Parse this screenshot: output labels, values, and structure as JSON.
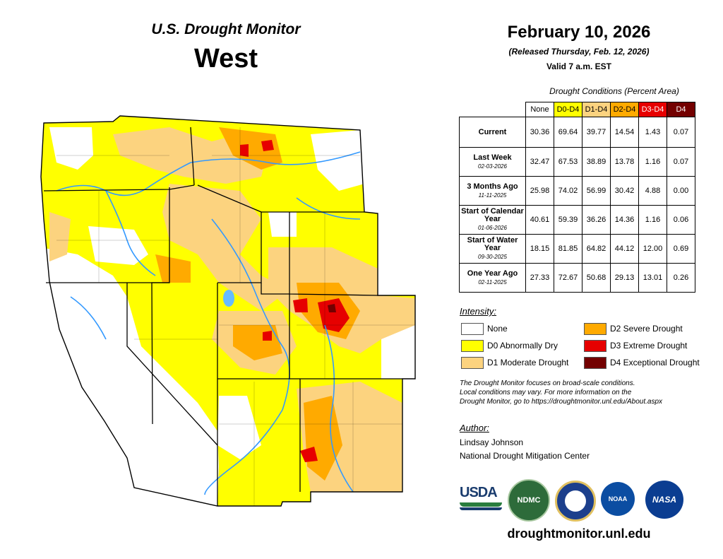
{
  "header": {
    "subtitle": "U.S. Drought Monitor",
    "region": "West",
    "date": "February 10, 2026",
    "released": "(Released Thursday, Feb. 12, 2026)",
    "valid": "Valid 7 a.m. EST"
  },
  "table": {
    "title": "Drought Conditions (Percent Area)",
    "columns": [
      "None",
      "D0-D4",
      "D1-D4",
      "D2-D4",
      "D3-D4",
      "D4"
    ],
    "column_colors": [
      "#ffffff",
      "#ffff00",
      "#fcd37f",
      "#ffaa00",
      "#e60000",
      "#730000"
    ],
    "rows": [
      {
        "label": "Current",
        "date": "",
        "values": [
          "30.36",
          "69.64",
          "39.77",
          "14.54",
          "1.43",
          "0.07"
        ]
      },
      {
        "label": "Last Week",
        "date": "02-03-2026",
        "values": [
          "32.47",
          "67.53",
          "38.89",
          "13.78",
          "1.16",
          "0.07"
        ]
      },
      {
        "label": "3 Months Ago",
        "date": "11-11-2025",
        "values": [
          "25.98",
          "74.02",
          "56.99",
          "30.42",
          "4.88",
          "0.00"
        ]
      },
      {
        "label": "Start of Calendar Year",
        "date": "01-06-2026",
        "values": [
          "40.61",
          "59.39",
          "36.26",
          "14.36",
          "1.16",
          "0.06"
        ]
      },
      {
        "label": "Start of Water Year",
        "date": "09-30-2025",
        "values": [
          "18.15",
          "81.85",
          "64.82",
          "44.12",
          "12.00",
          "0.69"
        ]
      },
      {
        "label": "One Year Ago",
        "date": "02-11-2025",
        "values": [
          "27.33",
          "72.67",
          "50.68",
          "29.13",
          "13.01",
          "0.26"
        ]
      }
    ]
  },
  "legend": {
    "heading": "Intensity:",
    "items": [
      {
        "label": "None",
        "color": "#ffffff"
      },
      {
        "label": "D0 Abnormally Dry",
        "color": "#ffff00"
      },
      {
        "label": "D1 Moderate Drought",
        "color": "#fcd37f"
      },
      {
        "label": "D2 Severe Drought",
        "color": "#ffaa00"
      },
      {
        "label": "D3 Extreme Drought",
        "color": "#e60000"
      },
      {
        "label": "D4 Exceptional Drought",
        "color": "#730000"
      }
    ]
  },
  "note": {
    "line1": "The Drought Monitor focuses on broad-scale conditions.",
    "line2": "Local conditions may vary. For more information on the",
    "line3": "Drought Monitor, go to https://droughtmonitor.unl.edu/About.aspx"
  },
  "author": {
    "heading": "Author:",
    "name": "Lindsay Johnson",
    "org": "National Drought Mitigation Center"
  },
  "logos": {
    "usda": "USDA",
    "ndmc": "NDMC",
    "noaa": "NOAA",
    "nasa": "NASA"
  },
  "footer": {
    "url": "droughtmonitor.unl.edu"
  }
}
